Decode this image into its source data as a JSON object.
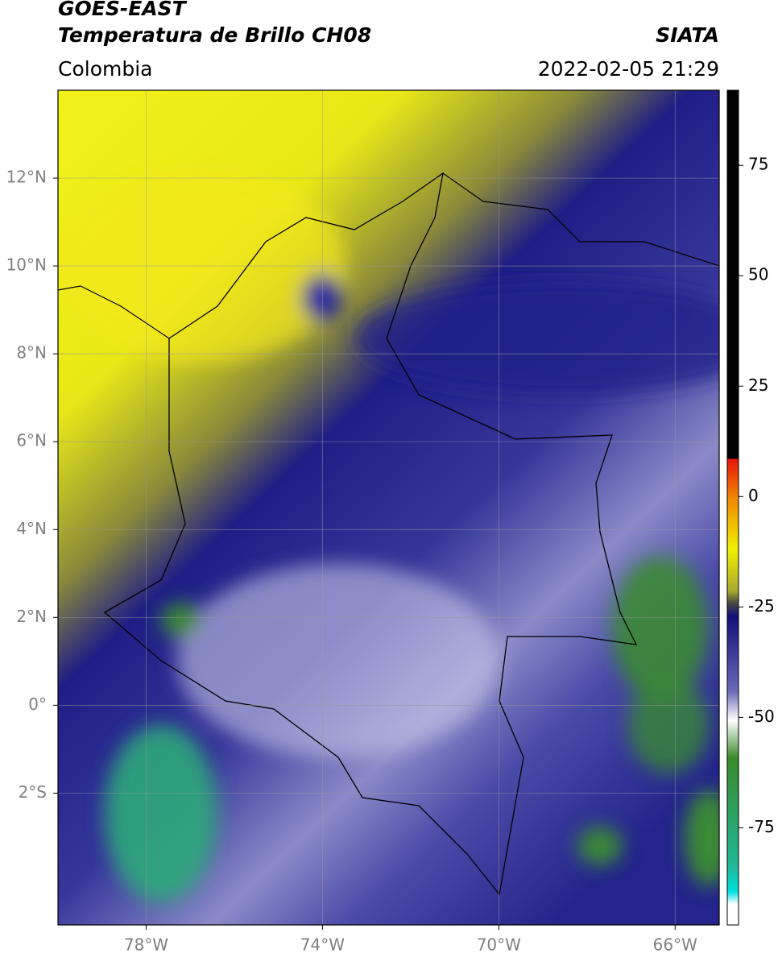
{
  "header": {
    "title": "GOES-EAST",
    "subtitle": "Temperatura de Brillo CH08",
    "region": "Colombia",
    "source": "SIATA",
    "datetime": "2022-02-05 21:29"
  },
  "map": {
    "lonlim": [
      -80,
      -65
    ],
    "latlim": [
      -5,
      14
    ],
    "xticks": [
      {
        "value": -78,
        "label": "78°W"
      },
      {
        "value": -74,
        "label": "74°W"
      },
      {
        "value": -70,
        "label": "70°W"
      },
      {
        "value": -66,
        "label": "66°W"
      }
    ],
    "yticks": [
      {
        "value": 12,
        "label": "12°N"
      },
      {
        "value": 10,
        "label": "10°N"
      },
      {
        "value": 8,
        "label": "8°N"
      },
      {
        "value": 6,
        "label": "6°N"
      },
      {
        "value": 4,
        "label": "4°N"
      },
      {
        "value": 2,
        "label": "2°N"
      },
      {
        "value": 0,
        "label": "0°"
      },
      {
        "value": -2,
        "label": "2°S"
      }
    ]
  },
  "colorbar": {
    "lim": [
      -97,
      92
    ],
    "ticks": [
      75,
      50,
      25,
      0,
      -25,
      -50,
      -75
    ]
  }
}
